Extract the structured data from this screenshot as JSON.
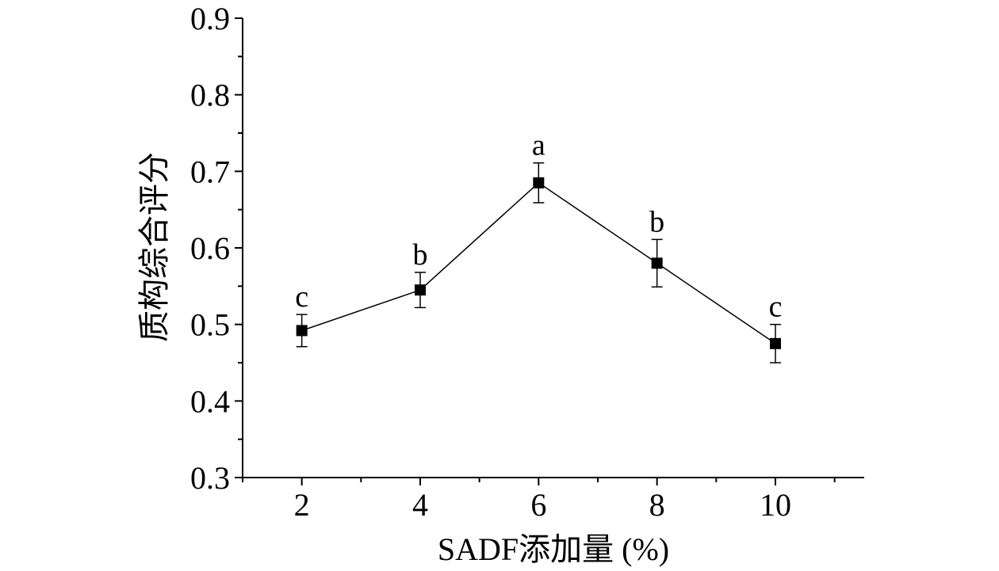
{
  "chart_data": {
    "type": "line",
    "title": "",
    "xlabel": "SADF添加量 (%)",
    "ylabel": "质构综合评分",
    "xlim": [
      1,
      11.5
    ],
    "ylim": [
      0.3,
      0.9
    ],
    "x_ticks": [
      "2",
      "4",
      "6",
      "8",
      "10"
    ],
    "y_ticks": [
      "0.3",
      "0.4",
      "0.5",
      "0.6",
      "0.7",
      "0.8",
      "0.9"
    ],
    "grid": false,
    "legend": "none",
    "series": [
      {
        "x": [
          2,
          4,
          6,
          8,
          10
        ],
        "values": [
          0.492,
          0.545,
          0.685,
          0.58,
          0.475
        ],
        "error": [
          0.021,
          0.023,
          0.026,
          0.031,
          0.025
        ],
        "significance": [
          "c",
          "b",
          "a",
          "b",
          "c"
        ],
        "marker": "square",
        "color": "#000000"
      }
    ]
  }
}
